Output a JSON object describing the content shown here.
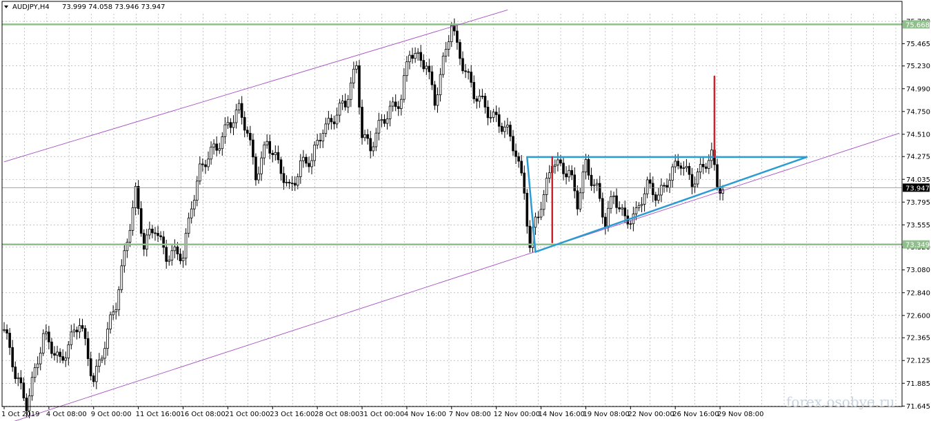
{
  "chart_header": {
    "symbol_timeframe": "AUDJPY,H4",
    "ohlc": "73.999 74.058 73.946 73.947"
  },
  "watermark": "forex.osobye.ru",
  "colors": {
    "background": "#ffffff",
    "grid": "#9aa0a6",
    "candle": "#000000",
    "channel": "#a64dc4",
    "support_resistance": "#8fbf8a",
    "triangle": "#2b9bd4",
    "target": "#d0202a",
    "price_marker_bg": "#000000",
    "level_marker_bg": "#8fbf8a"
  },
  "chart_data": {
    "type": "candlestick",
    "y_axis": {
      "range": [
        71.64,
        75.78
      ],
      "ticks": [
        "75.700",
        "75.465",
        "75.230",
        "74.990",
        "74.750",
        "74.510",
        "74.275",
        "74.035",
        "73.795",
        "73.555",
        "73.320",
        "73.080",
        "72.840",
        "72.600",
        "72.365",
        "72.125",
        "71.885",
        "71.645"
      ],
      "tick_values": [
        75.7,
        75.465,
        75.23,
        74.99,
        74.75,
        74.51,
        74.275,
        74.035,
        73.795,
        73.555,
        73.32,
        73.08,
        72.84,
        72.6,
        72.365,
        72.125,
        71.885,
        71.645
      ]
    },
    "x_axis": {
      "ticks": [
        "1 Oct 2019",
        "4 Oct 08:00",
        "9 Oct 00:00",
        "11 Oct 16:00",
        "16 Oct 08:00",
        "21 Oct 00:00",
        "23 Oct 16:00",
        "28 Oct 08:00",
        "31 Oct 00:00",
        "4 Nov 16:00",
        "7 Nov 08:00",
        "12 Nov 00:00",
        "14 Nov 16:00",
        "19 Nov 08:00",
        "22 Nov 00:00",
        "26 Nov 16:00",
        "29 Nov 08:00"
      ],
      "tick_bars": [
        0,
        16,
        32,
        48,
        64,
        80,
        96,
        112,
        128,
        144,
        160,
        176,
        192,
        208,
        224,
        240,
        256
      ]
    },
    "current_price": 73.947,
    "current_price_label": "73.947",
    "horizontal_levels": [
      {
        "value": 75.668,
        "label": "75.668"
      },
      {
        "value": 73.349,
        "label": "73.349"
      }
    ],
    "anchors": [
      [
        0,
        72.45
      ],
      [
        4,
        71.95
      ],
      [
        8,
        71.7
      ],
      [
        14,
        72.35
      ],
      [
        20,
        72.15
      ],
      [
        27,
        72.5
      ],
      [
        32,
        71.95
      ],
      [
        36,
        72.3
      ],
      [
        40,
        72.7
      ],
      [
        44,
        73.45
      ],
      [
        47,
        73.9
      ],
      [
        50,
        73.3
      ],
      [
        54,
        73.55
      ],
      [
        58,
        73.25
      ],
      [
        64,
        73.2
      ],
      [
        67,
        73.8
      ],
      [
        70,
        74.15
      ],
      [
        76,
        74.35
      ],
      [
        80,
        74.65
      ],
      [
        84,
        74.75
      ],
      [
        87,
        74.5
      ],
      [
        90,
        74.1
      ],
      [
        94,
        74.45
      ],
      [
        98,
        74.15
      ],
      [
        102,
        73.95
      ],
      [
        106,
        74.2
      ],
      [
        110,
        74.2
      ],
      [
        114,
        74.6
      ],
      [
        118,
        74.7
      ],
      [
        122,
        74.8
      ],
      [
        126,
        75.25
      ],
      [
        128,
        74.55
      ],
      [
        131,
        74.35
      ],
      [
        134,
        74.55
      ],
      [
        138,
        74.8
      ],
      [
        142,
        74.9
      ],
      [
        145,
        75.35
      ],
      [
        148,
        75.3
      ],
      [
        151,
        75.3
      ],
      [
        154,
        74.85
      ],
      [
        158,
        75.35
      ],
      [
        160,
        75.7
      ],
      [
        162,
        75.45
      ],
      [
        165,
        75.2
      ],
      [
        168,
        74.9
      ],
      [
        172,
        74.8
      ],
      [
        176,
        74.7
      ],
      [
        180,
        74.5
      ],
      [
        183,
        74.3
      ],
      [
        186,
        73.95
      ],
      [
        188,
        73.35
      ],
      [
        190,
        73.6
      ],
      [
        193,
        73.8
      ],
      [
        196,
        74.25
      ],
      [
        199,
        74.2
      ],
      [
        202,
        74.1
      ],
      [
        205,
        73.75
      ],
      [
        208,
        74.2
      ],
      [
        212,
        73.95
      ],
      [
        215,
        73.55
      ],
      [
        218,
        73.85
      ],
      [
        222,
        73.65
      ],
      [
        226,
        73.65
      ],
      [
        230,
        73.95
      ],
      [
        234,
        73.9
      ],
      [
        238,
        74.05
      ],
      [
        242,
        74.2
      ],
      [
        246,
        74.05
      ],
      [
        250,
        74.15
      ],
      [
        253,
        74.25
      ],
      [
        255,
        74.0
      ],
      [
        257,
        73.947
      ]
    ],
    "annotations": {
      "channel_upper": [
        [
          0,
          74.22
        ],
        [
          180,
          75.82
        ]
      ],
      "channel_lower": [
        [
          0,
          71.45
        ],
        [
          320,
          74.52
        ]
      ],
      "triangle_top": [
        [
          187,
          74.27
        ],
        [
          287,
          74.27
        ]
      ],
      "triangle_left": [
        [
          187,
          74.27
        ],
        [
          190,
          73.27
        ]
      ],
      "triangle_bottom": [
        [
          190,
          73.27
        ],
        [
          287,
          74.27
        ]
      ],
      "target_left": [
        [
          196,
          73.37
        ],
        [
          196,
          74.27
        ]
      ],
      "target_right": [
        [
          254,
          74.27
        ],
        [
          254,
          75.12
        ]
      ]
    }
  }
}
